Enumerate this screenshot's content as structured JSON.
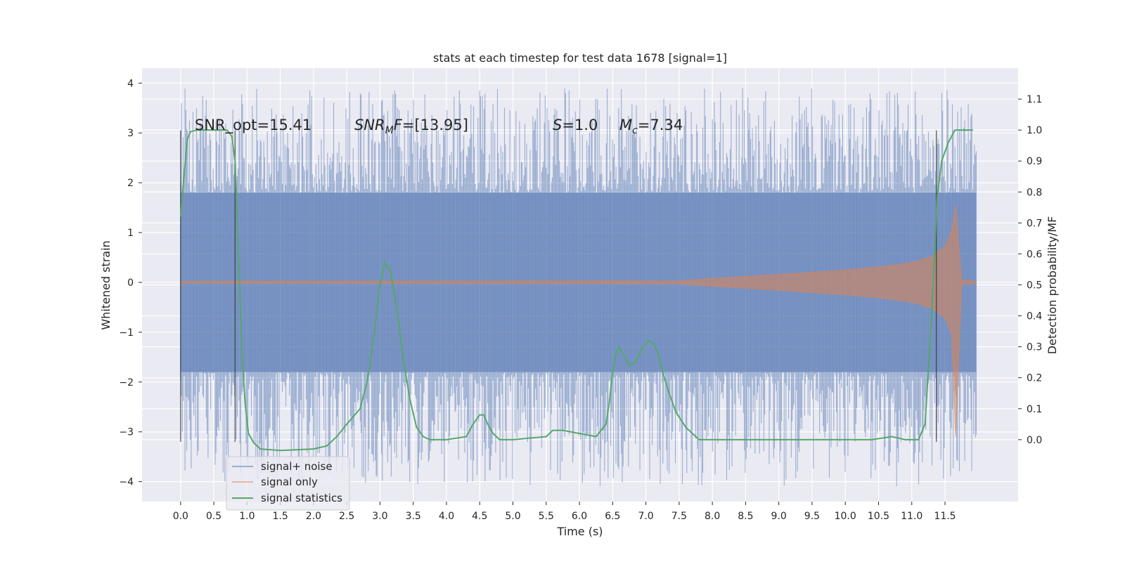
{
  "chart_data": {
    "type": "line",
    "title": "stats at each timestep for test data 1678 [signal=1]",
    "xlabel": "Time (s)",
    "ylabel": "Whitened strain",
    "ylabel_right": "Detection probability/MF",
    "xlim": [
      -0.58,
      12.6
    ],
    "ylim": [
      -4.4,
      4.3
    ],
    "ylim_right": [
      -0.2,
      1.2
    ],
    "x_ticks": [
      "0.0",
      "0.5",
      "1.0",
      "1.5",
      "2.0",
      "2.5",
      "3.0",
      "3.5",
      "4.0",
      "4.5",
      "5.0",
      "5.5",
      "6.0",
      "6.5",
      "7.0",
      "7.5",
      "8.0",
      "8.5",
      "9.0",
      "9.5",
      "10.0",
      "10.5",
      "11.0",
      "11.5"
    ],
    "y_ticks": [
      "4",
      "3",
      "2",
      "1",
      "0",
      "−1",
      "−2",
      "−3",
      "−4"
    ],
    "y_ticks_right": [
      "1.1",
      "1.0",
      "0.9",
      "0.8",
      "0.7",
      "0.6",
      "0.5",
      "0.4",
      "0.3",
      "0.2",
      "0.1",
      "0.0"
    ],
    "annotations": {
      "snr_opt": "SNR_opt=15.41",
      "snr_mf": "[13.95]",
      "snr_mf_label": "SNR",
      "snr_mf_sub": "M",
      "snr_mf_var": "F",
      "s_var": "S",
      "s_val": "=1.0",
      "mc_var": "M",
      "mc_sub": "c",
      "mc_val": "=7.34"
    },
    "grid": true,
    "legend_position": "lower left",
    "series": [
      {
        "name": "signal+ noise",
        "color": "#4c72b0",
        "envelope": {
          "t_start": 0.0,
          "t_end": 11.97,
          "band_pos": 1.8,
          "band_neg": -1.8,
          "peak_max": 3.9,
          "peak_min": -4.1
        }
      },
      {
        "name": "signal only",
        "color": "#dd8452",
        "envelope": {
          "t": [
            0.0,
            7.5,
            8.0,
            9.0,
            10.0,
            10.5,
            11.0,
            11.3,
            11.5,
            11.6,
            11.66,
            11.7,
            11.75,
            11.97
          ],
          "amplitude": [
            0.02,
            0.03,
            0.08,
            0.16,
            0.25,
            0.31,
            0.4,
            0.52,
            0.72,
            1.05,
            1.55,
            0.9,
            0.05,
            0.02
          ]
        }
      },
      {
        "name": "signal statistics",
        "color": "#55a868",
        "axis": "right",
        "x": [
          0.0,
          0.05,
          0.1,
          0.15,
          0.25,
          0.5,
          0.7,
          0.77,
          0.82,
          0.87,
          0.92,
          0.97,
          1.02,
          1.1,
          1.2,
          1.5,
          2.0,
          2.2,
          2.35,
          2.5,
          2.7,
          2.8,
          2.9,
          3.0,
          3.07,
          3.15,
          3.22,
          3.28,
          3.35,
          3.45,
          3.55,
          3.65,
          3.75,
          4.0,
          4.3,
          4.4,
          4.5,
          4.56,
          4.62,
          4.7,
          4.8,
          5.0,
          5.5,
          5.6,
          5.75,
          6.0,
          6.25,
          6.4,
          6.45,
          6.5,
          6.55,
          6.6,
          6.65,
          6.75,
          6.85,
          6.95,
          7.05,
          7.12,
          7.18,
          7.25,
          7.35,
          7.45,
          7.6,
          7.8,
          8.0,
          9.0,
          9.5,
          10.0,
          10.4,
          10.7,
          10.9,
          11.1,
          11.2,
          11.3,
          11.38,
          11.45,
          11.55,
          11.65,
          11.75,
          11.92
        ],
        "y": [
          0.72,
          0.85,
          0.97,
          0.995,
          1.0,
          1.0,
          1.0,
          0.98,
          0.9,
          0.6,
          0.3,
          0.12,
          0.02,
          -0.01,
          -0.03,
          -0.035,
          -0.03,
          -0.02,
          0.01,
          0.05,
          0.1,
          0.18,
          0.32,
          0.5,
          0.57,
          0.55,
          0.47,
          0.38,
          0.26,
          0.13,
          0.04,
          0.01,
          0.0,
          0.0,
          0.01,
          0.05,
          0.08,
          0.08,
          0.05,
          0.02,
          0.0,
          0.0,
          0.01,
          0.03,
          0.03,
          0.02,
          0.01,
          0.05,
          0.12,
          0.22,
          0.28,
          0.3,
          0.28,
          0.24,
          0.25,
          0.3,
          0.32,
          0.31,
          0.28,
          0.22,
          0.15,
          0.09,
          0.04,
          0.0,
          0.0,
          0.0,
          0.0,
          0.0,
          0.0,
          0.01,
          0.0,
          0.0,
          0.05,
          0.4,
          0.78,
          0.9,
          0.96,
          1.0,
          1.0,
          1.0
        ]
      }
    ],
    "vertical_markers_s": [
      0.0,
      0.82,
      11.37
    ]
  }
}
